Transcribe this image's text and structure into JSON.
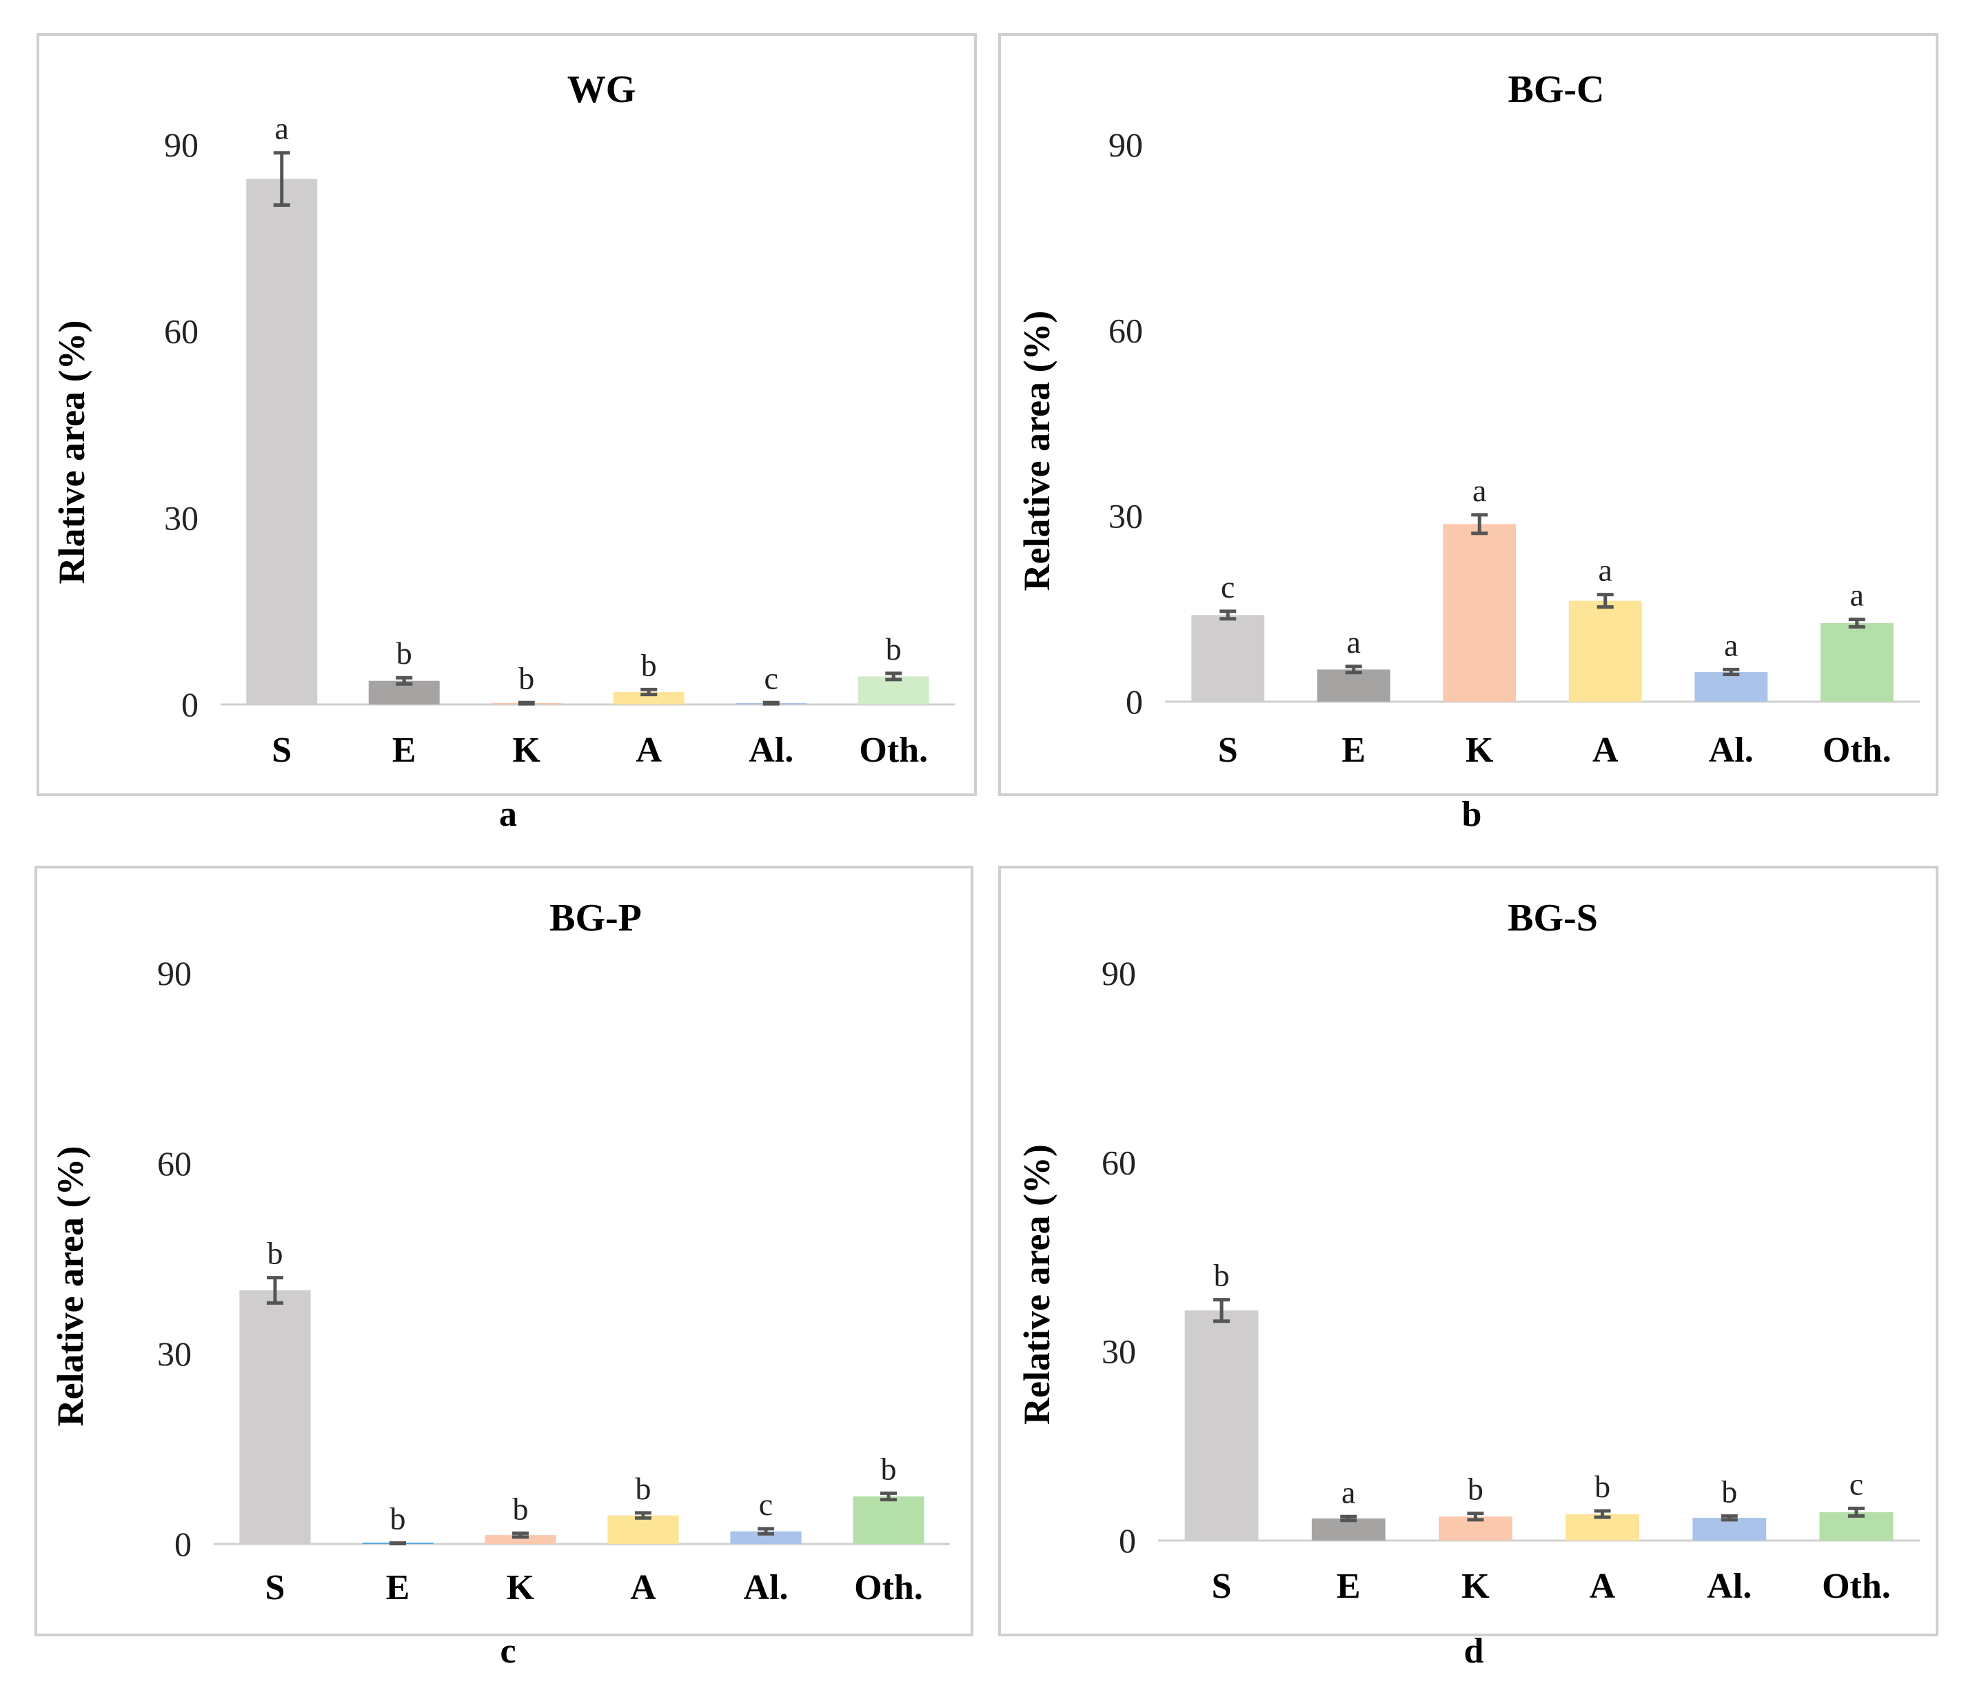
{
  "chart_data": [
    {
      "type": "bar",
      "title": "WG",
      "caption": "a",
      "ylabel": "Rlative area (%)",
      "xlabel": "",
      "categories": [
        "S",
        "E",
        "K",
        "A",
        "Al.",
        "Oth."
      ],
      "values": [
        84.5,
        3.8,
        0.2,
        2.0,
        0.2,
        4.5
      ],
      "errors": [
        4.2,
        0.5,
        0.1,
        0.4,
        0.1,
        0.5
      ],
      "significance": [
        "a",
        "b",
        "b",
        "b",
        "c",
        "b"
      ],
      "colors": [
        "#d0cdce",
        "#a6a3a3",
        "#f9c8ad",
        "#fde496",
        "#a9c4e8",
        "#d1ecc8"
      ],
      "ylim": [
        0,
        90
      ],
      "yticks": [
        0,
        30,
        60,
        90
      ],
      "grid": false
    },
    {
      "type": "bar",
      "title": "BG-C",
      "caption": "b",
      "ylabel": "Relative area (%)",
      "xlabel": "",
      "categories": [
        "S",
        "E",
        "K",
        "A",
        "Al.",
        "Oth."
      ],
      "values": [
        14.0,
        5.2,
        28.7,
        16.3,
        4.8,
        12.7
      ],
      "errors": [
        0.6,
        0.5,
        1.5,
        1.0,
        0.4,
        0.6
      ],
      "significance": [
        "c",
        "a",
        "a",
        "a",
        "a",
        "a"
      ],
      "colors": [
        "#d0cdce",
        "#a6a3a3",
        "#f9c8ad",
        "#fde496",
        "#a9c4e8",
        "#b5dfa9"
      ],
      "ylim": [
        0,
        90
      ],
      "yticks": [
        0,
        30,
        60,
        90
      ],
      "grid": false
    },
    {
      "type": "bar",
      "title": "BG-P",
      "caption": "c",
      "ylabel": "Relative area (%)",
      "xlabel": "",
      "categories": [
        "S",
        "E",
        "K",
        "A",
        "Al.",
        "Oth."
      ],
      "values": [
        40.0,
        0.1,
        1.4,
        4.5,
        2.0,
        7.5
      ],
      "errors": [
        2.0,
        0.05,
        0.3,
        0.4,
        0.4,
        0.5
      ],
      "significance": [
        "b",
        "b",
        "b",
        "b",
        "c",
        "b"
      ],
      "colors": [
        "#d0cdce",
        "#57a9dc",
        "#f9c8ad",
        "#fde496",
        "#a9c4e8",
        "#b5dfa9"
      ],
      "ylim": [
        0,
        90
      ],
      "yticks": [
        0,
        30,
        60,
        90
      ],
      "grid": false
    },
    {
      "type": "bar",
      "title": "BG-S",
      "caption": "d",
      "ylabel": "Relative area (%)",
      "xlabel": "",
      "categories": [
        "S",
        "E",
        "K",
        "A",
        "Al.",
        "Oth."
      ],
      "values": [
        36.5,
        3.5,
        3.8,
        4.2,
        3.6,
        4.5
      ],
      "errors": [
        1.7,
        0.3,
        0.5,
        0.5,
        0.3,
        0.6
      ],
      "significance": [
        "b",
        "a",
        "b",
        "b",
        "b",
        "c"
      ],
      "colors": [
        "#d0cdce",
        "#a6a3a3",
        "#f9c8ad",
        "#fde496",
        "#a9c4e8",
        "#b5dfa9"
      ],
      "ylim": [
        0,
        90
      ],
      "yticks": [
        0,
        30,
        60,
        90
      ],
      "grid": false
    }
  ]
}
